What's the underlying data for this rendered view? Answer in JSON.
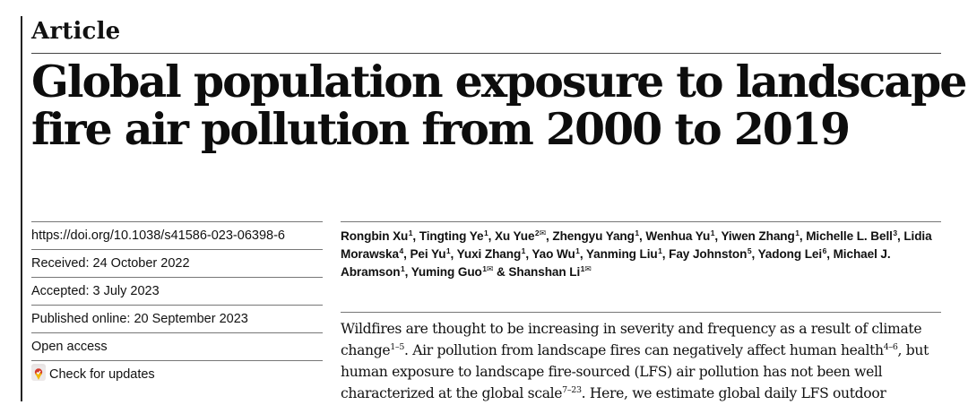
{
  "article_type": "Article",
  "title_lines": [
    "Global population exposure to landscape",
    "fire air pollution from 2000 to 2019"
  ],
  "meta": {
    "doi": "https://doi.org/10.1038/s41586-023-06398-6",
    "received": "Received: 24 October 2022",
    "accepted": "Accepted: 3 July 2023",
    "published": "Published online: 20 September 2023",
    "open_access": "Open access",
    "check_updates": "Check for updates",
    "check_updates_icon": "crossmark-icon"
  },
  "authors": [
    {
      "name": "Rongbin Xu",
      "aff": "1",
      "corresponding": false
    },
    {
      "name": "Tingting Ye",
      "aff": "1",
      "corresponding": false
    },
    {
      "name": "Xu Yue",
      "aff": "2",
      "corresponding": true
    },
    {
      "name": "Zhengyu Yang",
      "aff": "1",
      "corresponding": false
    },
    {
      "name": "Wenhua Yu",
      "aff": "1",
      "corresponding": false
    },
    {
      "name": "Yiwen Zhang",
      "aff": "1",
      "corresponding": false
    },
    {
      "name": "Michelle L. Bell",
      "aff": "3",
      "corresponding": false
    },
    {
      "name": "Lidia Morawska",
      "aff": "4",
      "corresponding": false
    },
    {
      "name": "Pei Yu",
      "aff": "1",
      "corresponding": false
    },
    {
      "name": "Yuxi Zhang",
      "aff": "1",
      "corresponding": false
    },
    {
      "name": "Yao Wu",
      "aff": "1",
      "corresponding": false
    },
    {
      "name": "Yanming Liu",
      "aff": "1",
      "corresponding": false
    },
    {
      "name": "Fay Johnston",
      "aff": "5",
      "corresponding": false
    },
    {
      "name": "Yadong Lei",
      "aff": "6",
      "corresponding": false
    },
    {
      "name": "Michael J. Abramson",
      "aff": "1",
      "corresponding": false
    },
    {
      "name": "Yuming Guo",
      "aff": "1",
      "corresponding": true
    },
    {
      "name": "Shanshan Li",
      "aff": "1",
      "corresponding": true
    }
  ],
  "author_separators": {
    "comma": ", ",
    "final": " & "
  },
  "abstract_parts": [
    {
      "t": "text",
      "v": "Wildfires are thought to be increasing in severity and frequency as a result of climate change"
    },
    {
      "t": "sup",
      "v": "1–5"
    },
    {
      "t": "text",
      "v": ". Air pollution from landscape fires can negatively affect human health"
    },
    {
      "t": "sup",
      "v": "4–6"
    },
    {
      "t": "text",
      "v": ", but human exposure to landscape fire-sourced (LFS) air pollution has not been well characterized at the global scale"
    },
    {
      "t": "sup",
      "v": "7–23"
    },
    {
      "t": "text",
      "v": ". Here, we estimate global daily LFS outdoor"
    }
  ]
}
